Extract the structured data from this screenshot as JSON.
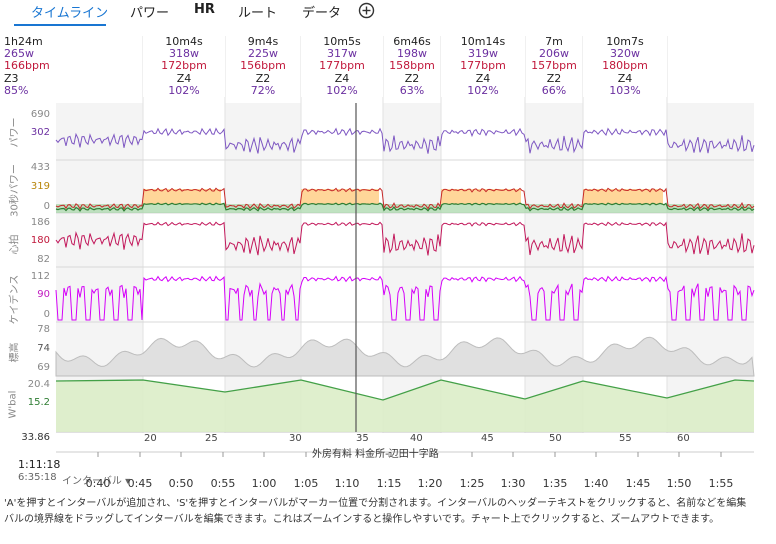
{
  "tabs": [
    {
      "label": "タイムライン",
      "active": true
    },
    {
      "label": "パワー"
    },
    {
      "label": "HR"
    },
    {
      "label": "ルート"
    },
    {
      "label": "データ"
    }
  ],
  "summary": {
    "duration": "1h24m",
    "watts": "265w",
    "bpm": "166bpm",
    "zone": "Z3",
    "pct": "85%"
  },
  "intervals": [
    {
      "duration": "10m4s",
      "watts": "318w",
      "bpm": "172bpm",
      "zone": "Z4",
      "pct": "102%"
    },
    {
      "duration": "9m4s",
      "watts": "225w",
      "bpm": "156bpm",
      "zone": "Z2",
      "pct": "72%"
    },
    {
      "duration": "10m5s",
      "watts": "317w",
      "bpm": "177bpm",
      "zone": "Z4",
      "pct": "102%"
    },
    {
      "duration": "6m46s",
      "watts": "198w",
      "bpm": "158bpm",
      "zone": "Z2",
      "pct": "63%"
    },
    {
      "duration": "10m14s",
      "watts": "319w",
      "bpm": "177bpm",
      "zone": "Z4",
      "pct": "102%"
    },
    {
      "duration": "7m",
      "watts": "206w",
      "bpm": "157bpm",
      "zone": "Z2",
      "pct": "66%"
    },
    {
      "duration": "10m7s",
      "watts": "320w",
      "bpm": "180bpm",
      "zone": "Z4",
      "pct": "103%"
    }
  ],
  "panels": {
    "power": {
      "label": "パワー",
      "ticks": [
        "690",
        "302"
      ],
      "color": "#7e57c2"
    },
    "power30": {
      "label": "30秒パワー",
      "ticks": [
        "433",
        "319",
        "0"
      ],
      "color": "#2e7d32"
    },
    "hr": {
      "label": "心拍",
      "ticks": [
        "186",
        "180",
        "82"
      ],
      "color": "#c2185b"
    },
    "cadence": {
      "label": "ケイデンス",
      "ticks": [
        "112",
        "90",
        "0"
      ],
      "color": "#d500f9"
    },
    "altitude": {
      "label": "標高",
      "ticks": [
        "78",
        "74",
        "69"
      ],
      "color": "#9e9e9e"
    },
    "wbal": {
      "label": "W'bal",
      "ticks": [
        "20.4",
        "15.2",
        "33.86"
      ],
      "color": "#43a047"
    }
  },
  "interval_numbers": [
    "20",
    "25",
    "30",
    "35",
    "40",
    "45",
    "50",
    "55",
    "60"
  ],
  "time_axis": {
    "cursor_time": "1:11:18",
    "clock_time": "6:35:18",
    "interval_menu": "インターバル",
    "labels": [
      "0:40",
      "0:45",
      "0:50",
      "0:55",
      "1:00",
      "1:05",
      "1:10",
      "1:15",
      "1:20",
      "1:25",
      "1:30",
      "1:35",
      "1:40",
      "1:45",
      "1:50",
      "1:55"
    ]
  },
  "location": "外房有料 料金所-辺田十字路",
  "help_lines": [
    "'A'を押すとインターバルが追加され、'S'を押すとインターバルがマーカー位置で分割されます。インターバルのヘッダーテキストをクリックすると、名前などを編集",
    "バルの境界線をドラッグしてインターバルを編集できます。これはズームインすると操作しやすいです。チャート上でクリックすると、ズームアウトできます。"
  ]
}
